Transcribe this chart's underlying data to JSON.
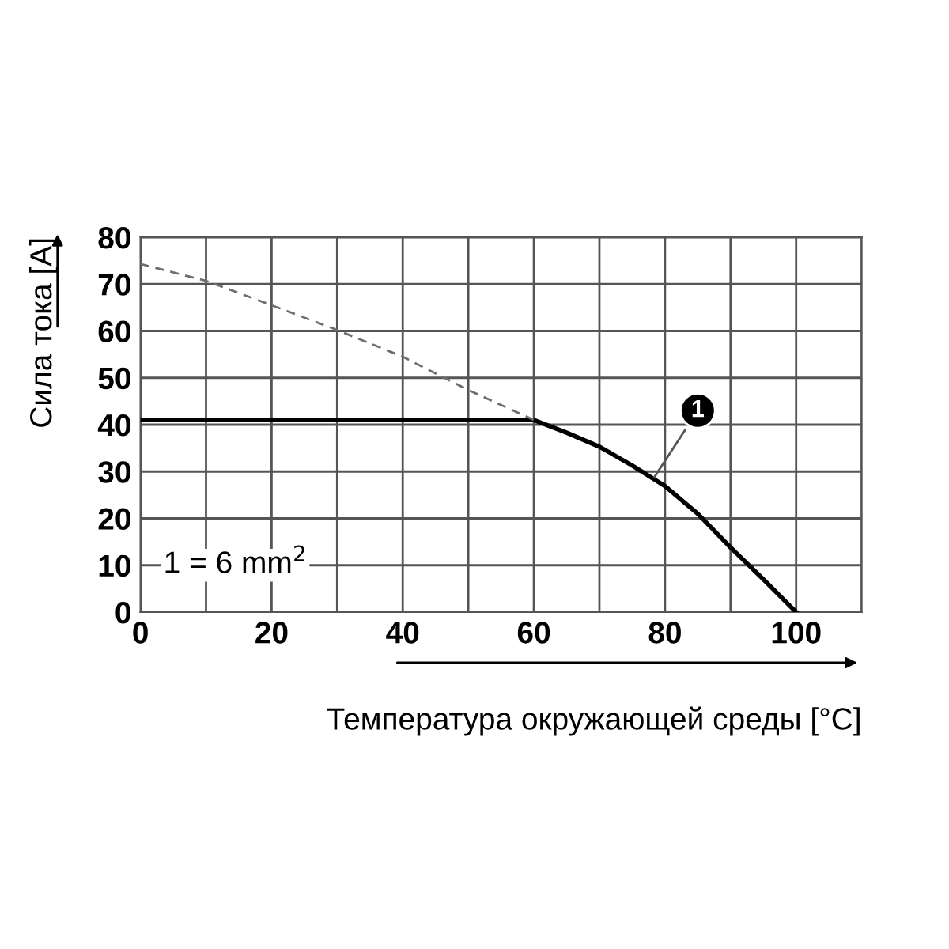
{
  "chart_data": {
    "type": "line",
    "xlabel": "Температура окружающей среды [°C]",
    "ylabel": "Сила тока [A]",
    "series": [
      {
        "color": "#000000",
        "line_style": "solid",
        "x": [
          0,
          60,
          65,
          70,
          75,
          80,
          85,
          90,
          95,
          100
        ],
        "values": [
          41,
          41,
          38.3,
          35.3,
          31.3,
          26.9,
          21,
          13.8,
          7,
          0
        ]
      },
      {
        "color": "#6e6e6e",
        "line_style": "dashed",
        "x": [
          0,
          10,
          20,
          30,
          40,
          50,
          60
        ],
        "values": [
          74.3,
          70.7,
          65.5,
          60.2,
          54.5,
          47.4,
          41
        ]
      }
    ],
    "annotations": [
      {
        "text": "1",
        "x": 78,
        "y": 28
      },
      "1 = 6 mm$^{2}$"
    ],
    "xlim": [
      0,
      110
    ],
    "ylim": [
      0,
      80
    ],
    "xticks": [
      0,
      {
        "value": 10,
        "label": null
      },
      20,
      {
        "value": 30,
        "label": null
      },
      40,
      {
        "value": 50,
        "label": null
      },
      60,
      {
        "value": 70,
        "label": null
      },
      80,
      {
        "value": 90,
        "label": null
      },
      100,
      {
        "value": 110,
        "label": null
      }
    ],
    "yticks": [
      0,
      10,
      20,
      30,
      40,
      50,
      60,
      70,
      80
    ],
    "grid": true,
    "legend": false
  }
}
